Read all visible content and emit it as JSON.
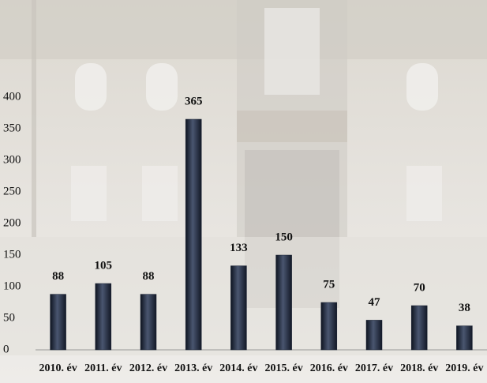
{
  "chart_data": {
    "type": "bar",
    "categories": [
      "2010. év",
      "2011. év",
      "2012. év",
      "2013. év",
      "2014. év",
      "2015. év",
      "2016. év",
      "2017. év",
      "2018. év",
      "2019. év"
    ],
    "values": [
      88,
      105,
      88,
      365,
      133,
      150,
      75,
      47,
      70,
      38
    ],
    "color": "#1c2435",
    "ylim": [
      0,
      400
    ],
    "yticks": [
      0,
      50,
      100,
      150,
      200,
      250,
      300,
      350,
      400
    ],
    "grid": false
  }
}
